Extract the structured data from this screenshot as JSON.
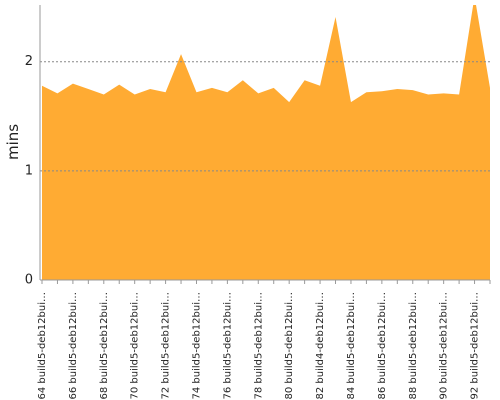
{
  "chart_data": {
    "type": "area",
    "y_label": "mins",
    "color": "#ffab33",
    "categories": [
      "#64 build5-deb12bui…",
      null,
      "#66 build5-deb12bui…",
      null,
      "#68 build5-deb12bui…",
      null,
      "#70 build5-deb12bui…",
      null,
      "#72 build5-deb12bui…",
      null,
      "#74 build5-deb12bui…",
      null,
      "#76 build5-deb12bui…",
      null,
      "#78 build5-deb12bui…",
      null,
      "#80 build5-deb12bui…",
      null,
      "#82 build4-deb12bui…",
      null,
      "#84 build5-deb12bui…",
      null,
      "#86 build5-deb12bui…",
      null,
      "#88 build5-deb12bui…",
      null,
      "#90 build5-deb12bui…",
      null,
      "#92 build5-deb12bui…",
      null
    ],
    "values": [
      1.78,
      1.71,
      1.8,
      1.75,
      1.7,
      1.79,
      1.7,
      1.75,
      1.72,
      2.07,
      1.72,
      1.76,
      1.72,
      1.83,
      1.71,
      1.76,
      1.63,
      1.83,
      1.78,
      2.41,
      1.63,
      1.72,
      1.73,
      1.75,
      1.74,
      1.7,
      1.71,
      1.7,
      2.6,
      1.76
    ],
    "ylim": [
      0,
      2.52
    ],
    "yticks": [
      0,
      1,
      2
    ],
    "grid": true
  }
}
